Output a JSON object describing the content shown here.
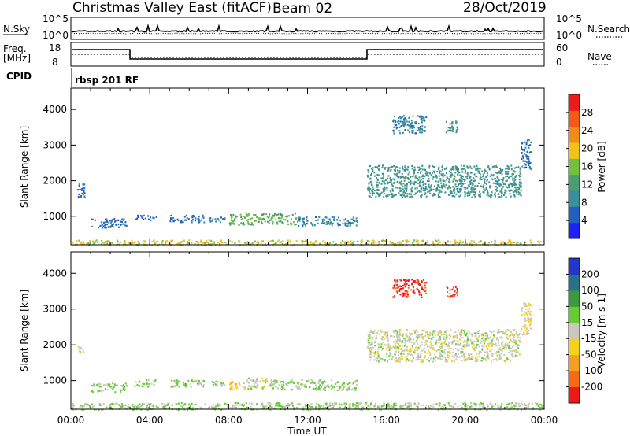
{
  "header": {
    "title": "Christmas Valley East (fitACF)",
    "beam": "Beam 02",
    "date": "28/Oct/2019"
  },
  "status_panels": {
    "noise": {
      "left_label": "N.Sky",
      "left_ticks": [
        "10^5",
        "10^0"
      ],
      "right_ticks": [
        "10^5",
        "10^0"
      ],
      "right_label": "N.Search"
    },
    "freq": {
      "left_label_1": "Freq.",
      "left_label_2": "[MHz]",
      "left_ticks": [
        "18",
        "8"
      ],
      "right_ticks": [
        "60",
        "0"
      ],
      "right_label": "Nave"
    },
    "cpid": {
      "left_label": "CPID",
      "program": "rbsp 201 RF"
    }
  },
  "time_axis": {
    "ticks": [
      "00:00",
      "04:00",
      "08:00",
      "12:00",
      "16:00",
      "20:00",
      "00:00"
    ],
    "label": "Time UT"
  },
  "colors": {
    "power_scale": [
      "#2020ff",
      "#2060c0",
      "#3a8f9a",
      "#4c9d70",
      "#72c040",
      "#f2c21a",
      "#f08c1c",
      "#f25a1a",
      "#ee1a1a"
    ],
    "velocity_scale": [
      "#ee1a1a",
      "#f56a12",
      "#f4a024",
      "#f4d21c",
      "#c8c8c0",
      "#66cc33",
      "#3a9a40",
      "#2a7088",
      "#2038c8"
    ]
  },
  "chart_data": [
    {
      "type": "heatmap",
      "name": "power",
      "ylabel": "Slant Range [km]",
      "yticks": [
        1000,
        2000,
        3000,
        4000
      ],
      "ylim": [
        200,
        4600
      ],
      "xlim_hours": [
        0,
        24
      ],
      "colorbar": {
        "label": "Power [dB]",
        "ticks": [
          4,
          8,
          12,
          16,
          20,
          24,
          28
        ],
        "range": [
          0,
          32
        ]
      },
      "echo_regions": [
        {
          "t_start": 0.0,
          "t_end": 24.0,
          "r_start": 200,
          "r_end": 350,
          "level": 18
        },
        {
          "t_start": 0.3,
          "t_end": 0.7,
          "r_start": 1550,
          "r_end": 2000,
          "level": 6
        },
        {
          "t_start": 1.0,
          "t_end": 2.8,
          "r_start": 700,
          "r_end": 950,
          "level": 6
        },
        {
          "t_start": 3.2,
          "t_end": 4.3,
          "r_start": 900,
          "r_end": 1050,
          "level": 6
        },
        {
          "t_start": 5.0,
          "t_end": 6.8,
          "r_start": 850,
          "r_end": 1050,
          "level": 6
        },
        {
          "t_start": 7.0,
          "t_end": 7.8,
          "r_start": 850,
          "r_end": 1000,
          "level": 8
        },
        {
          "t_start": 8.0,
          "t_end": 11.5,
          "r_start": 780,
          "r_end": 1100,
          "level": 14
        },
        {
          "t_start": 11.5,
          "t_end": 14.5,
          "r_start": 750,
          "r_end": 1000,
          "level": 8
        },
        {
          "t_start": 15.0,
          "t_end": 22.8,
          "r_start": 1550,
          "r_end": 2450,
          "level": 10
        },
        {
          "t_start": 16.3,
          "t_end": 18.0,
          "r_start": 3350,
          "r_end": 3850,
          "level": 8
        },
        {
          "t_start": 19.0,
          "t_end": 19.6,
          "r_start": 3350,
          "r_end": 3700,
          "level": 10
        },
        {
          "t_start": 22.8,
          "t_end": 23.3,
          "r_start": 2300,
          "r_end": 3200,
          "level": 6
        }
      ]
    },
    {
      "type": "heatmap",
      "name": "velocity",
      "ylabel": "Slant Range [km]",
      "yticks": [
        1000,
        2000,
        3000,
        4000
      ],
      "ylim": [
        200,
        4600
      ],
      "xlim_hours": [
        0,
        24
      ],
      "colorbar": {
        "label": "Velocity [m s-1]",
        "ticks": [
          -200,
          -100,
          -50,
          -15,
          15,
          50,
          100,
          200
        ],
        "range": [
          -250,
          250
        ]
      },
      "echo_regions": [
        {
          "t_start": 0.0,
          "t_end": 24.0,
          "r_start": 200,
          "r_end": 400,
          "level": 30
        },
        {
          "t_start": 0.3,
          "t_end": 0.7,
          "r_start": 1800,
          "r_end": 2000,
          "level": -30
        },
        {
          "t_start": 1.0,
          "t_end": 2.8,
          "r_start": 700,
          "r_end": 950,
          "level": 40
        },
        {
          "t_start": 3.2,
          "t_end": 4.3,
          "r_start": 850,
          "r_end": 1050,
          "level": 40
        },
        {
          "t_start": 5.0,
          "t_end": 6.8,
          "r_start": 850,
          "r_end": 1050,
          "level": 40
        },
        {
          "t_start": 7.0,
          "t_end": 7.8,
          "r_start": 850,
          "r_end": 1000,
          "level": 40
        },
        {
          "t_start": 8.0,
          "t_end": 8.8,
          "r_start": 780,
          "r_end": 1000,
          "level": -60
        },
        {
          "t_start": 8.8,
          "t_end": 10.2,
          "r_start": 780,
          "r_end": 1100,
          "level": 0
        },
        {
          "t_start": 10.2,
          "t_end": 14.5,
          "r_start": 750,
          "r_end": 1050,
          "level": 40
        },
        {
          "t_start": 15.0,
          "t_end": 22.8,
          "r_start": 1550,
          "r_end": 2450,
          "level": 0
        },
        {
          "t_start": 16.3,
          "t_end": 18.0,
          "r_start": 3350,
          "r_end": 3850,
          "level": -220
        },
        {
          "t_start": 19.0,
          "t_end": 19.6,
          "r_start": 3350,
          "r_end": 3650,
          "level": -200
        },
        {
          "t_start": 22.8,
          "t_end": 23.3,
          "r_start": 2300,
          "r_end": 3200,
          "level": -30
        }
      ]
    }
  ]
}
